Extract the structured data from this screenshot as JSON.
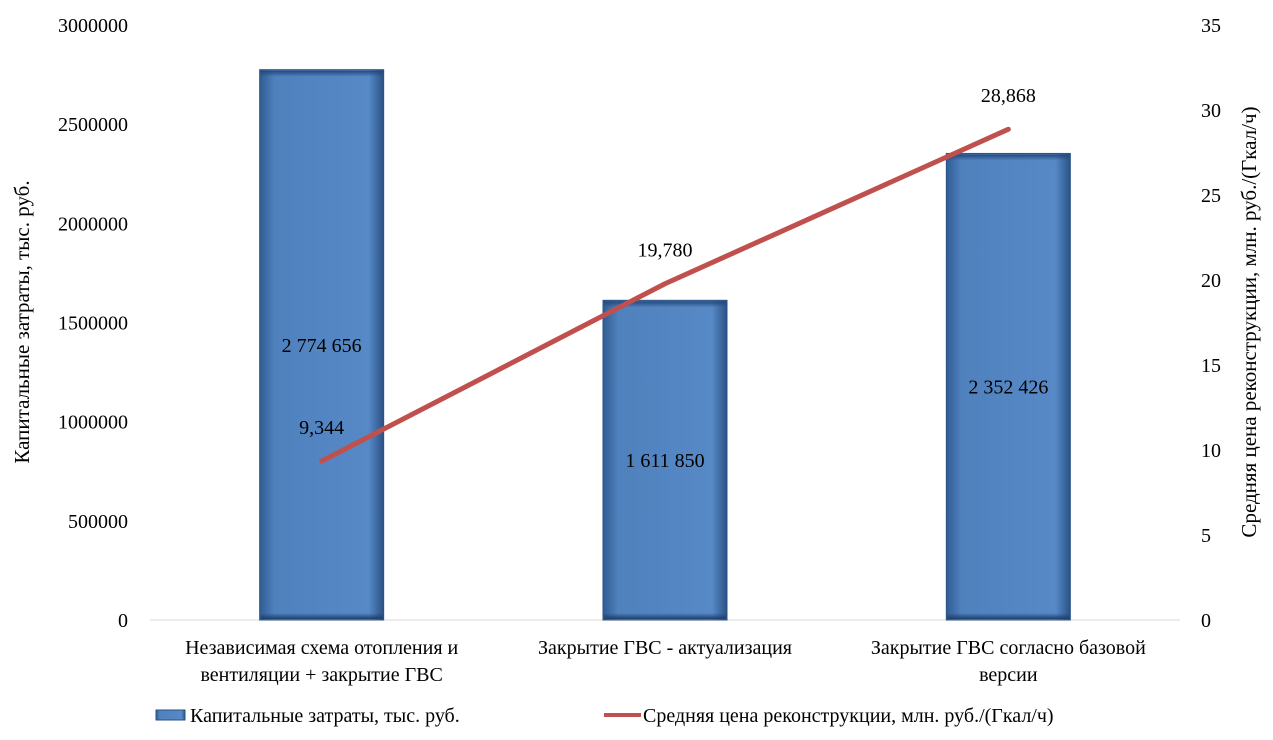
{
  "chart_data": {
    "type": "bar",
    "categories": [
      [
        "Независимая схема отопления и",
        "вентиляции + закрытие ГВС"
      ],
      [
        "Закрытие ГВС - актуализация"
      ],
      [
        "Закрытие ГВС согласно базовой",
        "версии"
      ]
    ],
    "series": [
      {
        "name": "Капитальные затраты, тыс. руб.",
        "type": "bar",
        "axis": "left",
        "values": [
          2774656,
          1611850,
          2352426
        ],
        "labels": [
          "2 774 656",
          "1 611 850",
          "2 352 426"
        ],
        "color": "#4F81BD"
      },
      {
        "name": "Средняя цена реконструкции, млн. руб./(Гкал/ч)",
        "type": "line",
        "axis": "right",
        "values": [
          9.344,
          19.78,
          28.868
        ],
        "labels": [
          "9,344",
          "19,780",
          "28,868"
        ],
        "color": "#C0504D"
      }
    ],
    "ylabel_left": "Капитальные затраты, тыс. руб.",
    "ylabel_right": "Средняя цена реконструкции, млн. руб./(Гкал/ч)",
    "ylim_left": [
      0,
      3000000
    ],
    "ylim_right": [
      0,
      35
    ],
    "yticks_left": [
      "0",
      "500000",
      "1000000",
      "1500000",
      "2000000",
      "2500000",
      "3000000"
    ],
    "yticks_right": [
      "0",
      "5",
      "10",
      "15",
      "20",
      "25",
      "30",
      "35"
    ],
    "grid": false,
    "legend_position": "bottom"
  }
}
